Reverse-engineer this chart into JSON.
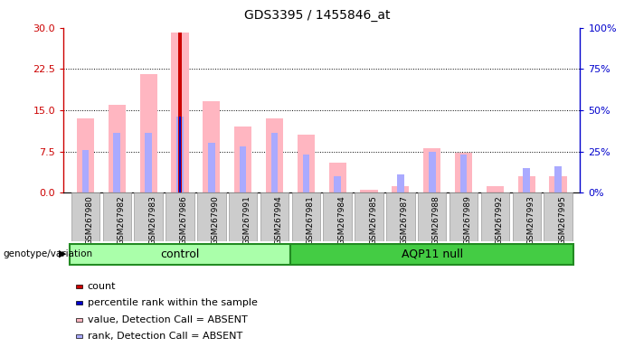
{
  "title": "GDS3395 / 1455846_at",
  "samples": [
    "GSM267980",
    "GSM267982",
    "GSM267983",
    "GSM267986",
    "GSM267990",
    "GSM267991",
    "GSM267994",
    "GSM267981",
    "GSM267984",
    "GSM267985",
    "GSM267987",
    "GSM267988",
    "GSM267989",
    "GSM267992",
    "GSM267993",
    "GSM267995"
  ],
  "control_count": 7,
  "groups": [
    "control",
    "AQP11 null"
  ],
  "group_light_color": "#aaffaa",
  "group_dark_color": "#44cc44",
  "group_edge_color": "#228B22",
  "pink_values": [
    13.5,
    16.0,
    21.5,
    29.2,
    16.7,
    12.0,
    13.5,
    10.5,
    5.5,
    0.5,
    1.2,
    8.0,
    7.2,
    1.2,
    3.0,
    3.0
  ],
  "blue_rank": [
    26.0,
    36.0,
    36.0,
    46.0,
    30.0,
    28.0,
    36.0,
    23.0,
    10.0,
    0.0,
    11.0,
    25.0,
    23.0,
    0.0,
    15.0,
    16.0
  ],
  "red_count": [
    0.0,
    0.0,
    0.0,
    29.2,
    0.0,
    0.0,
    0.0,
    0.0,
    0.0,
    0.0,
    0.0,
    0.0,
    0.0,
    0.0,
    0.0,
    0.0
  ],
  "dark_blue_rank": [
    0.0,
    0.0,
    0.0,
    46.0,
    0.0,
    0.0,
    0.0,
    0.0,
    0.0,
    0.0,
    0.0,
    0.0,
    0.0,
    0.0,
    0.0,
    0.0
  ],
  "ylim_left": [
    0,
    30
  ],
  "ylim_right": [
    0,
    100
  ],
  "yticks_left": [
    0,
    7.5,
    15,
    22.5,
    30
  ],
  "yticks_right": [
    0,
    25,
    50,
    75,
    100
  ],
  "ylabel_left_color": "#CC0000",
  "ylabel_right_color": "#0000CC",
  "plot_bg": "#ffffff",
  "legend_items": [
    {
      "label": "count",
      "color": "#CC0000"
    },
    {
      "label": "percentile rank within the sample",
      "color": "#0000CC"
    },
    {
      "label": "value, Detection Call = ABSENT",
      "color": "#FFB6C1"
    },
    {
      "label": "rank, Detection Call = ABSENT",
      "color": "#aaaaff"
    }
  ]
}
